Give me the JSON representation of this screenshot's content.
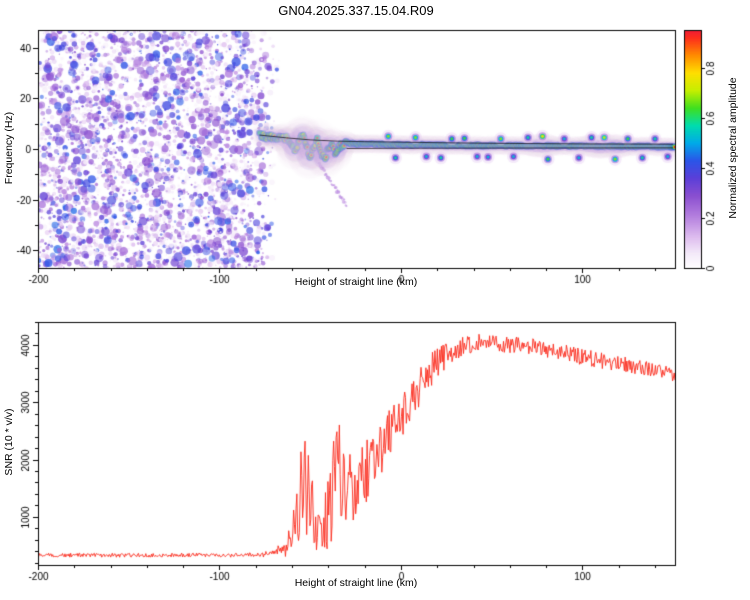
{
  "title": "GN04.2025.337.15.04.R09",
  "colors": {
    "background": "#ffffff",
    "frame": "#000000",
    "snr_line": "#fb2a1c",
    "model_line": "#000000"
  },
  "chart_data": [
    {
      "type": "heatmap",
      "title": "",
      "xlabel": "Height of straight line (km)",
      "ylabel": "Frequency (Hz)",
      "xlim": [
        -200,
        151
      ],
      "ylim": [
        -47,
        47
      ],
      "xticks": [
        -200,
        -100,
        0,
        100
      ],
      "yticks": [
        -40,
        -20,
        0,
        20,
        40
      ],
      "minor_x": 20,
      "minor_y": 10,
      "colorbar": {
        "label": "Normalized spectral amplitude",
        "ticks": [
          0,
          0.2,
          0.4,
          0.6,
          0.8
        ],
        "range": [
          0,
          0.95
        ]
      },
      "colormap": [
        {
          "v": 0.0,
          "c": "#ffffff"
        },
        {
          "v": 0.06,
          "c": "#f4eaf9"
        },
        {
          "v": 0.13,
          "c": "#dcb9ee"
        },
        {
          "v": 0.21,
          "c": "#b37ede"
        },
        {
          "v": 0.29,
          "c": "#8a4fd0"
        },
        {
          "v": 0.36,
          "c": "#5b3fd8"
        },
        {
          "v": 0.43,
          "c": "#2b55e8"
        },
        {
          "v": 0.5,
          "c": "#00aae8"
        },
        {
          "v": 0.57,
          "c": "#00dcae"
        },
        {
          "v": 0.64,
          "c": "#3fdf1f"
        },
        {
          "v": 0.71,
          "c": "#c6ef00"
        },
        {
          "v": 0.78,
          "c": "#ffdf00"
        },
        {
          "v": 0.85,
          "c": "#ff8c00"
        },
        {
          "v": 0.92,
          "c": "#fd2e1c"
        },
        {
          "v": 1.0,
          "c": "#d8005f"
        }
      ],
      "noise_region": {
        "x_range": [
          -200,
          -67
        ],
        "fade_start": -86,
        "density": 3600,
        "large_blobs": 350,
        "amp_range": [
          0.04,
          0.44
        ]
      },
      "streak": {
        "from": [
          -45,
          -6
        ],
        "to": [
          -30,
          -22
        ],
        "amp": 0.16
      },
      "signal_trace": [
        [
          -78,
          5.5,
          0.5,
          4
        ],
        [
          -75,
          5,
          0.7,
          5
        ],
        [
          -72,
          4.8,
          0.8,
          5
        ],
        [
          -69,
          4.6,
          0.85,
          5
        ],
        [
          -66,
          4.5,
          0.8,
          5
        ],
        [
          -63,
          4.2,
          0.85,
          6
        ],
        [
          -60,
          2,
          0.8,
          7
        ],
        [
          -58,
          -1.5,
          0.85,
          8
        ],
        [
          -56,
          3,
          0.8,
          8
        ],
        [
          -54,
          5.5,
          0.85,
          8
        ],
        [
          -52,
          1,
          0.8,
          9
        ],
        [
          -50,
          -3.5,
          0.85,
          9
        ],
        [
          -48,
          0.5,
          0.9,
          9
        ],
        [
          -46,
          4,
          0.85,
          8
        ],
        [
          -44,
          -1,
          0.8,
          8
        ],
        [
          -42,
          -4,
          0.85,
          8
        ],
        [
          -40,
          0,
          0.9,
          8
        ],
        [
          -38,
          3,
          0.85,
          7
        ],
        [
          -36,
          -1.5,
          0.9,
          7
        ],
        [
          -34,
          0.5,
          0.85,
          6
        ],
        [
          -32,
          2,
          0.9,
          5
        ],
        [
          -30,
          2.3,
          0.92,
          4.5
        ],
        [
          -26,
          2.1,
          0.95,
          4
        ],
        [
          -22,
          2,
          0.9,
          4
        ],
        [
          -18,
          1.9,
          0.95,
          4
        ],
        [
          -14,
          1.8,
          0.9,
          4
        ],
        [
          -10,
          1.9,
          0.95,
          4
        ],
        [
          -6,
          1.8,
          0.92,
          4
        ],
        [
          -2,
          1.8,
          0.95,
          4
        ],
        [
          2,
          1.7,
          0.95,
          4
        ],
        [
          6,
          1.7,
          0.9,
          4
        ],
        [
          10,
          1.7,
          0.95,
          4
        ],
        [
          15,
          1.6,
          0.92,
          4
        ],
        [
          20,
          1.6,
          0.95,
          4
        ],
        [
          25,
          1.5,
          0.9,
          4
        ],
        [
          30,
          1.5,
          0.95,
          4
        ],
        [
          35,
          1.5,
          0.92,
          4
        ],
        [
          40,
          1.4,
          0.95,
          4
        ],
        [
          45,
          1.4,
          0.9,
          4
        ],
        [
          50,
          1.4,
          0.95,
          4
        ],
        [
          55,
          1.4,
          0.92,
          4
        ],
        [
          60,
          1.3,
          0.95,
          4
        ],
        [
          65,
          1.3,
          0.9,
          4
        ],
        [
          70,
          1.3,
          0.95,
          4
        ],
        [
          75,
          1.3,
          0.92,
          5
        ],
        [
          80,
          1.3,
          0.95,
          5
        ],
        [
          85,
          1.2,
          0.9,
          4
        ],
        [
          90,
          1.2,
          0.95,
          4
        ],
        [
          95,
          1.2,
          0.92,
          4
        ],
        [
          100,
          1.2,
          0.95,
          4
        ],
        [
          105,
          1.2,
          0.9,
          5
        ],
        [
          110,
          1.1,
          0.95,
          5
        ],
        [
          115,
          1.1,
          0.92,
          5
        ],
        [
          120,
          1.1,
          0.95,
          5
        ],
        [
          125,
          1.1,
          0.9,
          4
        ],
        [
          130,
          1.1,
          0.95,
          4
        ],
        [
          135,
          1.0,
          0.92,
          4
        ],
        [
          140,
          1.0,
          0.95,
          4
        ],
        [
          145,
          1.0,
          0.9,
          4
        ],
        [
          150,
          1.0,
          0.95,
          4
        ]
      ],
      "blobs": [
        [
          -7,
          5,
          0.5
        ],
        [
          -3,
          -3.5,
          0.4
        ],
        [
          8,
          4.5,
          0.5
        ],
        [
          14,
          -3,
          0.35
        ],
        [
          22,
          -3.5,
          0.4
        ],
        [
          28,
          4,
          0.45
        ],
        [
          35,
          4.2,
          0.45
        ],
        [
          42,
          -3,
          0.35
        ],
        [
          48,
          -3.2,
          0.35
        ],
        [
          55,
          4,
          0.5
        ],
        [
          62,
          -3,
          0.35
        ],
        [
          70,
          4.5,
          0.4
        ],
        [
          78,
          5,
          0.6
        ],
        [
          81,
          -4,
          0.45
        ],
        [
          90,
          4,
          0.35
        ],
        [
          98,
          -3.5,
          0.35
        ],
        [
          105,
          4.5,
          0.4
        ],
        [
          112,
          4.5,
          0.55
        ],
        [
          118,
          -4,
          0.5
        ],
        [
          125,
          4,
          0.45
        ],
        [
          133,
          -3.5,
          0.4
        ],
        [
          140,
          4,
          0.4
        ],
        [
          147,
          -3,
          0.35
        ]
      ],
      "model_lines": [
        [
          [
            -78,
            5.5
          ],
          [
            -63,
            4.4
          ],
          [
            -50,
            3.6
          ],
          [
            -35,
            3.1
          ],
          [
            -20,
            2.9
          ],
          [
            0,
            2.7
          ],
          [
            30,
            2.4
          ],
          [
            60,
            2.2
          ],
          [
            100,
            2.0
          ],
          [
            150,
            1.9
          ]
        ],
        [
          [
            -30,
            0.2
          ],
          [
            0,
            0.3
          ],
          [
            50,
            0.35
          ],
          [
            100,
            0.4
          ],
          [
            150,
            0.45
          ]
        ]
      ],
      "seed": 1337
    },
    {
      "type": "line",
      "title": "",
      "xlabel": "Height of straight line (km)",
      "ylabel": "SNR (10 * v/v)",
      "xlim": [
        -200,
        151
      ],
      "ylim": [
        160,
        4400
      ],
      "xticks": [
        -200,
        -100,
        0,
        100
      ],
      "yticks": [
        1000,
        2000,
        3000,
        4000
      ],
      "minor_x": 20,
      "minor_y": 200,
      "series": [
        {
          "name": "SNR",
          "color": "#fb2a1c",
          "step_km": 0.45,
          "mean_keypoints": [
            [
              -200,
              330
            ],
            [
              -150,
              330
            ],
            [
              -110,
              335
            ],
            [
              -90,
              330
            ],
            [
              -80,
              335
            ],
            [
              -74,
              350
            ],
            [
              -68,
              420
            ],
            [
              -63,
              520
            ],
            [
              -60,
              800
            ],
            [
              -58,
              1100
            ],
            [
              -56,
              900
            ],
            [
              -54,
              650
            ],
            [
              -51,
              600
            ],
            [
              -48,
              700
            ],
            [
              -45,
              800
            ],
            [
              -42,
              900
            ],
            [
              -39,
              1200
            ],
            [
              -36,
              1400
            ],
            [
              -33,
              1200
            ],
            [
              -30,
              1250
            ],
            [
              -27,
              1400
            ],
            [
              -24,
              1550
            ],
            [
              -21,
              1700
            ],
            [
              -18,
              1850
            ],
            [
              -15,
              2000
            ],
            [
              -12,
              2150
            ],
            [
              -9,
              2300
            ],
            [
              -6,
              2450
            ],
            [
              -3,
              2600
            ],
            [
              0,
              2750
            ],
            [
              3,
              2900
            ],
            [
              6,
              3050
            ],
            [
              9,
              3200
            ],
            [
              12,
              3350
            ],
            [
              15,
              3500
            ],
            [
              18,
              3620
            ],
            [
              22,
              3750
            ],
            [
              26,
              3850
            ],
            [
              30,
              3920
            ],
            [
              35,
              3980
            ],
            [
              40,
              4020
            ],
            [
              45,
              4040
            ],
            [
              50,
              4040
            ],
            [
              55,
              4020
            ],
            [
              60,
              4000
            ],
            [
              65,
              3990
            ],
            [
              70,
              3970
            ],
            [
              75,
              3950
            ],
            [
              80,
              3930
            ],
            [
              85,
              3900
            ],
            [
              90,
              3870
            ],
            [
              95,
              3830
            ],
            [
              100,
              3790
            ],
            [
              105,
              3760
            ],
            [
              110,
              3730
            ],
            [
              115,
              3700
            ],
            [
              120,
              3680
            ],
            [
              125,
              3650
            ],
            [
              130,
              3620
            ],
            [
              135,
              3590
            ],
            [
              140,
              3560
            ],
            [
              145,
              3520
            ],
            [
              150,
              3480
            ]
          ],
          "noise_keypoints": [
            [
              -200,
              35
            ],
            [
              -100,
              35
            ],
            [
              -80,
              40
            ],
            [
              -72,
              60
            ],
            [
              -66,
              120
            ],
            [
              -62,
              260
            ],
            [
              -59,
              550
            ],
            [
              -56,
              450
            ],
            [
              -53,
              300
            ],
            [
              -50,
              280
            ],
            [
              -47,
              320
            ],
            [
              -44,
              420
            ],
            [
              -41,
              600
            ],
            [
              -38,
              750
            ],
            [
              -35,
              800
            ],
            [
              -32,
              600
            ],
            [
              -29,
              550
            ],
            [
              -26,
              560
            ],
            [
              -23,
              550
            ],
            [
              -20,
              540
            ],
            [
              -17,
              520
            ],
            [
              -14,
              500
            ],
            [
              -11,
              480
            ],
            [
              -8,
              460
            ],
            [
              -5,
              440
            ],
            [
              -2,
              420
            ],
            [
              1,
              400
            ],
            [
              4,
              380
            ],
            [
              7,
              360
            ],
            [
              10,
              340
            ],
            [
              14,
              310
            ],
            [
              18,
              280
            ],
            [
              22,
              250
            ],
            [
              26,
              220
            ],
            [
              30,
              190
            ],
            [
              35,
              170
            ],
            [
              40,
              160
            ],
            [
              50,
              150
            ],
            [
              60,
              150
            ],
            [
              70,
              150
            ],
            [
              80,
              150
            ],
            [
              90,
              150
            ],
            [
              100,
              145
            ],
            [
              110,
              140
            ],
            [
              120,
              135
            ],
            [
              130,
              130
            ],
            [
              140,
              128
            ],
            [
              150,
              125
            ]
          ],
          "spikes": [
            [
              -55,
              2300
            ],
            [
              -53,
              2600
            ],
            [
              -51,
              2150
            ],
            [
              -49,
              1900
            ],
            [
              -37,
              2500
            ],
            [
              -35.5,
              2900
            ],
            [
              -34,
              2700
            ],
            [
              -31.5,
              2450
            ],
            [
              -28,
              2250
            ]
          ]
        }
      ],
      "seed": 4242
    }
  ]
}
